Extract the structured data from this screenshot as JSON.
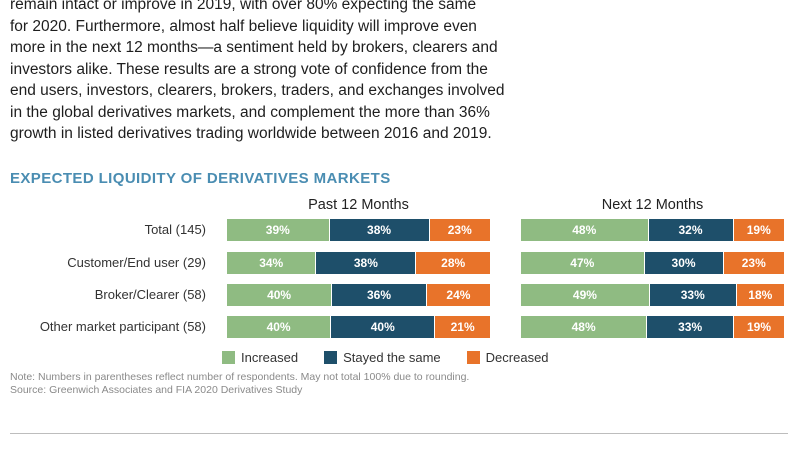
{
  "intro": {
    "lines": [
      "remain intact or improve in 2019, with over 80% expecting the same",
      "for 2020. Furthermore, almost half believe liquidity will improve even",
      "more in the next 12 months—a sentiment held by brokers, clearers and",
      "investors alike. These results are a strong vote of confidence from the",
      "end users, investors, clearers, brokers, traders, and exchanges involved",
      "in the global derivatives markets, and complement the more than 36%",
      "growth in listed derivatives trading worldwide between 2016 and 2019."
    ]
  },
  "chart_data": {
    "type": "bar",
    "stacked": true,
    "orientation": "horizontal",
    "normalized": true,
    "title": "EXPECTED LIQUIDITY OF DERIVATIVES MARKETS",
    "categories": [
      "Total (145)",
      "Customer/End user (29)",
      "Broker/Clearer (58)",
      "Other market participant (58)"
    ],
    "panels": [
      {
        "title": "Past 12 Months",
        "series": [
          {
            "name": "Increased",
            "values": [
              39,
              34,
              40,
              40
            ]
          },
          {
            "name": "Stayed the same",
            "values": [
              38,
              38,
              36,
              40
            ]
          },
          {
            "name": "Decreased",
            "values": [
              23,
              28,
              24,
              21
            ]
          }
        ]
      },
      {
        "title": "Next 12 Months",
        "series": [
          {
            "name": "Increased",
            "values": [
              48,
              47,
              49,
              48
            ]
          },
          {
            "name": "Stayed the same",
            "values": [
              32,
              30,
              33,
              33
            ]
          },
          {
            "name": "Decreased",
            "values": [
              19,
              23,
              18,
              19
            ]
          }
        ]
      }
    ],
    "value_suffix": "%",
    "legend": [
      {
        "name": "Increased",
        "color": "#8fbb82"
      },
      {
        "name": "Stayed the same",
        "color": "#1e4f6a"
      },
      {
        "name": "Decreased",
        "color": "#e8732a"
      }
    ],
    "legend_position": "bottom",
    "notes": [
      "Note: Numbers in parentheses reflect number of respondents. May not total 100% due to rounding.",
      "Source: Greenwich Associates and FIA 2020 Derivatives Study"
    ]
  }
}
